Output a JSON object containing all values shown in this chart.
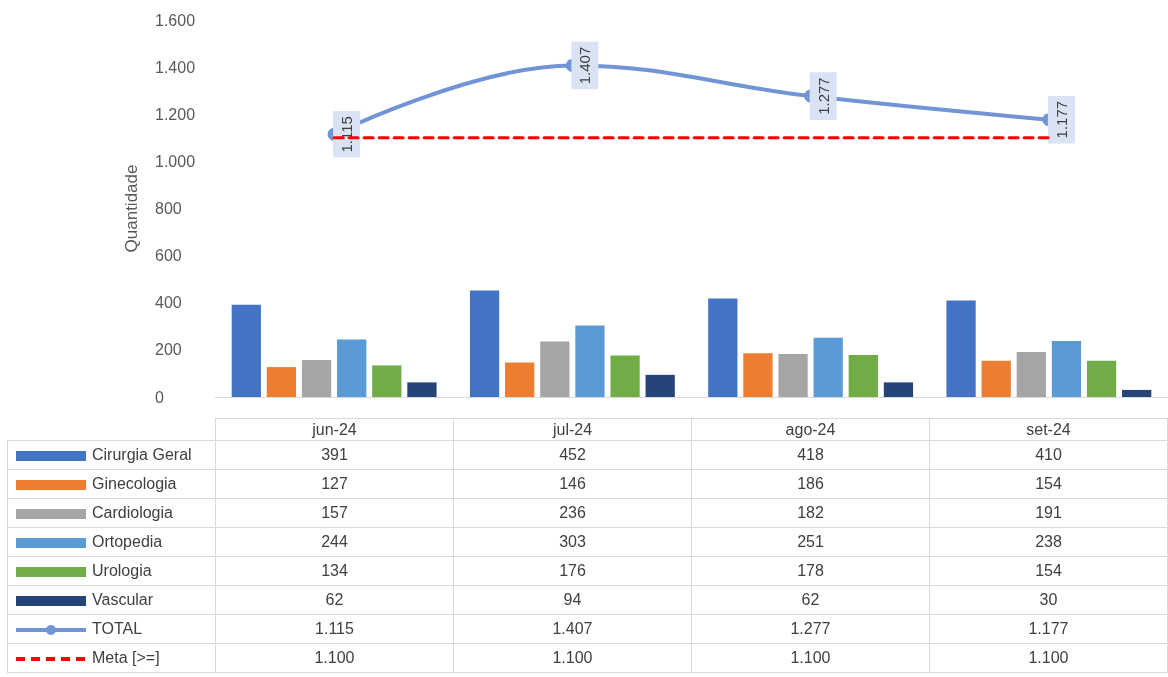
{
  "chart_data": {
    "type": "bar",
    "ylabel": "Quantidade",
    "categories": [
      "jun-24",
      "jul-24",
      "ago-24",
      "set-24"
    ],
    "ylim": [
      0,
      1600
    ],
    "yticks": [
      0,
      {
        "value": 200,
        "label": "200"
      },
      {
        "value": 400,
        "label": "400"
      },
      {
        "value": 600,
        "label": "600"
      },
      {
        "value": 800,
        "label": "800"
      },
      {
        "value": 1000,
        "label": "1.000"
      },
      {
        "value": 1200,
        "label": "1.200"
      },
      {
        "value": 1400,
        "label": "1.400"
      },
      {
        "value": 1600,
        "label": "1.600"
      }
    ],
    "grid": false,
    "legend": "bottom left",
    "data_labels": true,
    "series": [
      {
        "name": "Cirurgia Geral",
        "color": "#4472c4",
        "values": [
          391,
          452,
          418,
          410
        ]
      },
      {
        "name": "Ginecologia",
        "color": "#ed7d31",
        "values": [
          127,
          146,
          186,
          154
        ]
      },
      {
        "name": "Cardiologia",
        "color": "#a5a5a5",
        "values": [
          157,
          236,
          182,
          191
        ]
      },
      {
        "name": "Ortopedia",
        "color": "#5b9bd5",
        "values": [
          244,
          303,
          251,
          238
        ]
      },
      {
        "name": "Urologia",
        "color": "#70ad47",
        "values": [
          134,
          176,
          178,
          154
        ]
      },
      {
        "name": "Vascular",
        "color": "#264478",
        "values": [
          62,
          94,
          62,
          30
        ]
      },
      {
        "name": "TOTAL",
        "type": "line",
        "marker": "circle",
        "line_style": "solid",
        "color": "#7094d6",
        "values": [
          1115,
          1407,
          1277,
          1177
        ],
        "value_labels": [
          "1.115",
          "1.407",
          "1.277",
          "1.177"
        ]
      },
      {
        "name": "Meta [>=]",
        "type": "line",
        "marker": "none",
        "line_style": "dashed",
        "color": "#ff0000",
        "values": [
          1100,
          1100,
          1100,
          1100
        ],
        "value_labels": [
          "1.100",
          "1.100",
          "1.100",
          "1.100"
        ]
      }
    ]
  }
}
